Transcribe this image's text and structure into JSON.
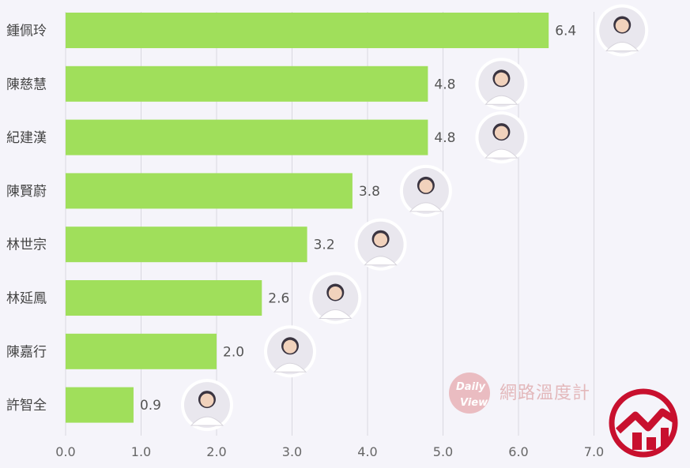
{
  "chart_data": {
    "type": "bar",
    "orientation": "horizontal",
    "categories": [
      "鍾佩玲",
      "陳慈慧",
      "紀建漢",
      "陳賢蔚",
      "林世宗",
      "林延鳳",
      "陳嘉行",
      "許智全"
    ],
    "values": [
      6.4,
      4.8,
      4.8,
      3.8,
      3.2,
      2.6,
      2.0,
      0.9
    ],
    "value_labels": [
      "6.4",
      "4.8",
      "4.8",
      "3.8",
      "3.2",
      "2.6",
      "2.0",
      "0.9"
    ],
    "xlim": [
      0,
      7.0
    ],
    "x_ticks": [
      0,
      1,
      2,
      3,
      4,
      5,
      6,
      7
    ],
    "x_tick_labels": [
      "0.0",
      "1.0",
      "2.0",
      "3.0",
      "4.0",
      "5.0",
      "6.0",
      "7.0"
    ],
    "grid": true,
    "legend": "none",
    "bar_color": "#a0df5b",
    "title": "",
    "xlabel": "",
    "ylabel": ""
  },
  "watermark": {
    "badge_line1": "Daily",
    "badge_line2": "View",
    "text": "網路溫度計",
    "color": "#e3b8bb"
  },
  "logo": {
    "icon": "trend-chart-logo-icon",
    "color": "#c8102e"
  }
}
